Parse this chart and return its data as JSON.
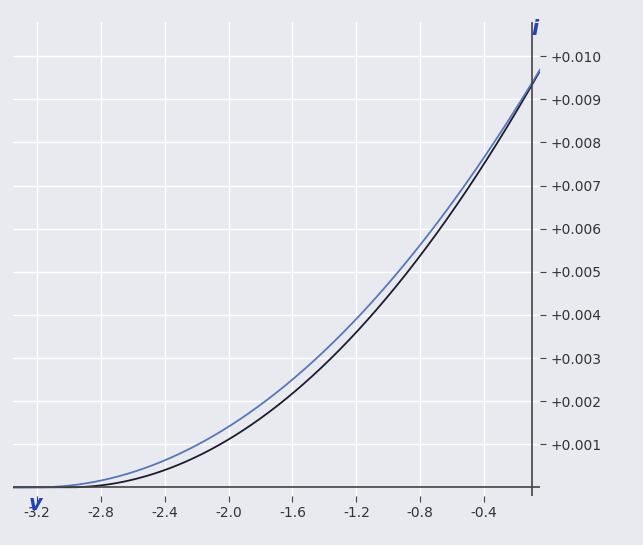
{
  "title_i": "i",
  "title_v": "v",
  "x_min": -3.35,
  "x_max": -0.05,
  "y_min": -0.0002,
  "y_max": 0.0108,
  "x_ticks": [
    -3.2,
    -2.8,
    -2.4,
    -2.0,
    -1.6,
    -1.2,
    -0.8,
    -0.4
  ],
  "y_ticks": [
    0.001,
    0.002,
    0.003,
    0.004,
    0.005,
    0.006,
    0.007,
    0.008,
    0.009,
    0.01
  ],
  "background_color": "#e8eaf0",
  "grid_color": "#ffffff",
  "axis_color": "#444444",
  "curve1_color": "#1c1c2e",
  "curve2_color": "#5577bb",
  "tick_label_color": "#333333",
  "axis_label_color": "#2244bb",
  "IDSS": 0.01,
  "VP_jfet": -3.0,
  "VT_mosfet": -3.2,
  "K_mosfet": 0.000977
}
